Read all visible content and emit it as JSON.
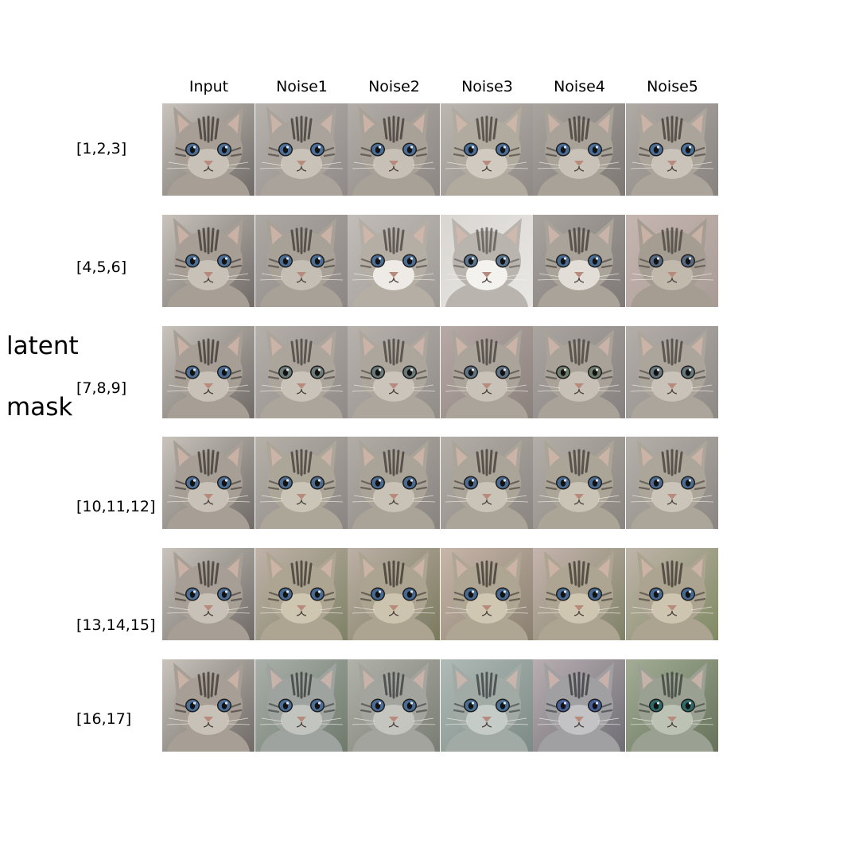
{
  "side_label": [
    "latent",
    "mask"
  ],
  "columns": [
    "Input",
    "Noise1",
    "Noise2",
    "Noise3",
    "Noise4",
    "Noise5"
  ],
  "rows": [
    {
      "label": "[1,2,3]",
      "tiles": [
        {
          "bg": "#6f6a66",
          "fur": "#a79f95",
          "face": "#c7c1b7",
          "stripe": "#3a3430",
          "eye": "#4b6f96",
          "bg2": "#c9c3bc"
        },
        {
          "bg": "#8f8a88",
          "fur": "#a9a39b",
          "face": "#c8c2b8",
          "stripe": "#3c3632",
          "eye": "#496f9a",
          "bg2": "#b8b2ad"
        },
        {
          "bg": "#8b8682",
          "fur": "#a7a197",
          "face": "#c6c0b6",
          "stripe": "#3b3531",
          "eye": "#4a6e98",
          "bg2": "#b3ada8"
        },
        {
          "bg": "#8e8985",
          "fur": "#b0aa9f",
          "face": "#d0cac0",
          "stripe": "#403a36",
          "eye": "#4a6f9b",
          "bg2": "#bdb7b1"
        },
        {
          "bg": "#7d7874",
          "fur": "#a8a298",
          "face": "#c8c2b8",
          "stripe": "#3b3531",
          "eye": "#496e99",
          "bg2": "#aaa49f"
        },
        {
          "bg": "#88837f",
          "fur": "#aaa49a",
          "face": "#c9c3b9",
          "stripe": "#3c3632",
          "eye": "#4a6f99",
          "bg2": "#b0aaa5"
        }
      ]
    },
    {
      "label": "[4,5,6]",
      "tiles": [
        {
          "bg": "#6f6a66",
          "fur": "#a79f95",
          "face": "#c7c1b7",
          "stripe": "#3a3430",
          "eye": "#4b6f96",
          "bg2": "#c9c3bc"
        },
        {
          "bg": "#8c8785",
          "fur": "#a8a197",
          "face": "#c4beb4",
          "stripe": "#3e3834",
          "eye": "#4a6d95",
          "bg2": "#aea8a3"
        },
        {
          "bg": "#9c9894",
          "fur": "#b4aea5",
          "face": "#eeebe6",
          "stripe": "#45403c",
          "eye": "#4a6d95",
          "bg2": "#c2bdb8"
        },
        {
          "bg": "#e9e7e4",
          "fur": "#b9b4ad",
          "face": "#f4f2ef",
          "stripe": "#5a5550",
          "eye": "#5b7690",
          "bg2": "#d9d6d2"
        },
        {
          "bg": "#7e7976",
          "fur": "#a9a399",
          "face": "#e2ded7",
          "stripe": "#3e3834",
          "eye": "#4a6d95",
          "bg2": "#aaa49f"
        },
        {
          "bg": "#a89b96",
          "fur": "#a59d92",
          "face": "#c2b9ad",
          "stripe": "#45403b",
          "eye": "#556a80",
          "bg2": "#c6b6b1"
        }
      ]
    },
    {
      "label": "[7,8,9]",
      "tiles": [
        {
          "bg": "#6f6a66",
          "fur": "#a79f95",
          "face": "#c7c1b7",
          "stripe": "#3a3430",
          "eye": "#4b6f96",
          "bg2": "#c9c3bc"
        },
        {
          "bg": "#8f8b87",
          "fur": "#aba59c",
          "face": "#c9c3ba",
          "stripe": "#423c38",
          "eye": "#6d7c78",
          "bg2": "#b5afaa"
        },
        {
          "bg": "#908c88",
          "fur": "#aca69d",
          "face": "#cac4bb",
          "stripe": "#433d39",
          "eye": "#6a7a7a",
          "bg2": "#b8b2ad"
        },
        {
          "bg": "#8a807c",
          "fur": "#aaa49b",
          "face": "#c8c2b9",
          "stripe": "#423c38",
          "eye": "#5f7386",
          "bg2": "#b7a9a6"
        },
        {
          "bg": "#858180",
          "fur": "#a8a299",
          "face": "#c6c0b7",
          "stripe": "#413b37",
          "eye": "#6f7e6c",
          "bg2": "#aba5a0"
        },
        {
          "bg": "#8d8985",
          "fur": "#aba59c",
          "face": "#c8c2b9",
          "stripe": "#423c38",
          "eye": "#66787c",
          "bg2": "#b4aea9"
        }
      ]
    },
    {
      "label": "[10,11,12]",
      "tiles": [
        {
          "bg": "#6f6a66",
          "fur": "#a79f95",
          "face": "#c7c1b7",
          "stripe": "#3a3430",
          "eye": "#4b6f96",
          "bg2": "#c9c3bc"
        },
        {
          "bg": "#8a8582",
          "fur": "#aca699",
          "face": "#cbc5b8",
          "stripe": "#3e3834",
          "eye": "#4c6c92",
          "bg2": "#b6b0a9"
        },
        {
          "bg": "#88837f",
          "fur": "#aaa498",
          "face": "#c9c3b7",
          "stripe": "#3d3733",
          "eye": "#4b6b93",
          "bg2": "#b3ada7"
        },
        {
          "bg": "#8a8581",
          "fur": "#aba599",
          "face": "#cac4b8",
          "stripe": "#3d3733",
          "eye": "#4b6b93",
          "bg2": "#b5afa9"
        },
        {
          "bg": "#89847f",
          "fur": "#aba598",
          "face": "#cac4b7",
          "stripe": "#3d3733",
          "eye": "#4b6c93",
          "bg2": "#b4aea8"
        },
        {
          "bg": "#8b8682",
          "fur": "#aca69a",
          "face": "#cbc5b9",
          "stripe": "#3e3834",
          "eye": "#4c6c93",
          "bg2": "#b6b0aa"
        }
      ]
    },
    {
      "label": "[13,14,15]",
      "tiles": [
        {
          "bg": "#6f6a66",
          "fur": "#a79f95",
          "face": "#c7c1b7",
          "stripe": "#3a3430",
          "eye": "#4b6f96",
          "bg2": "#c9c3bc"
        },
        {
          "bg": "#7e8266",
          "fur": "#ada592",
          "face": "#cfc6b2",
          "stripe": "#3a332d",
          "eye": "#476a94",
          "bg2": "#c0b2a8"
        },
        {
          "bg": "#7a7a5e",
          "fur": "#aca490",
          "face": "#cdc4b0",
          "stripe": "#39322c",
          "eye": "#466993",
          "bg2": "#bdb0a6"
        },
        {
          "bg": "#8a8070",
          "fur": "#aea693",
          "face": "#d0c7b3",
          "stripe": "#3a332d",
          "eye": "#476a94",
          "bg2": "#c7b6aa"
        },
        {
          "bg": "#7f8267",
          "fur": "#ada592",
          "face": "#cfc6b2",
          "stripe": "#3a332d",
          "eye": "#476a94",
          "bg2": "#c6b4ae"
        },
        {
          "bg": "#7f8a63",
          "fur": "#aca491",
          "face": "#cec5b1",
          "stripe": "#3a332d",
          "eye": "#476a94",
          "bg2": "#c0b4aa"
        }
      ]
    },
    {
      "label": "[16,17]",
      "tiles": [
        {
          "bg": "#6f6a66",
          "fur": "#a79f95",
          "face": "#c7c1b7",
          "stripe": "#3a3430",
          "eye": "#4b6f96",
          "bg2": "#c9c3bc"
        },
        {
          "bg": "#6f7a6c",
          "fur": "#9fa39f",
          "face": "#c1c4bf",
          "stripe": "#343836",
          "eye": "#4a6d97",
          "bg2": "#a9b0a9"
        },
        {
          "bg": "#7a7d74",
          "fur": "#a3a49e",
          "face": "#c4c5be",
          "stripe": "#37393a",
          "eye": "#4a6d97",
          "bg2": "#b1b2aa"
        },
        {
          "bg": "#7c8a86",
          "fur": "#a2aaa6",
          "face": "#c5ccc8",
          "stripe": "#353b3b",
          "eye": "#4a7096",
          "bg2": "#b0bab6"
        },
        {
          "bg": "#6f6e74",
          "fur": "#a09fa2",
          "face": "#c3c2c4",
          "stripe": "#343438",
          "eye": "#48609a",
          "bg2": "#b8aeb1"
        },
        {
          "bg": "#66725a",
          "fur": "#9aa193",
          "face": "#bcc3b5",
          "stripe": "#323a32",
          "eye": "#2f6a6a",
          "bg2": "#a3ad96"
        }
      ]
    }
  ]
}
